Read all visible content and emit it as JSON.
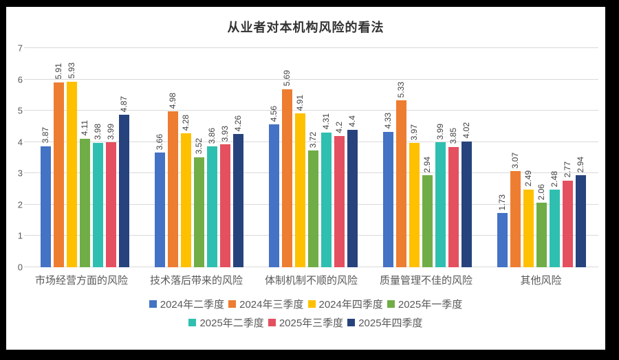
{
  "chart_data": {
    "type": "bar",
    "title": "从业者对本机构风险的看法",
    "xlabel": "",
    "ylabel": "",
    "ylim": [
      0,
      7
    ],
    "y_ticks": [
      0,
      1,
      2,
      3,
      4,
      5,
      6,
      7
    ],
    "grid": true,
    "legend_position": "bottom",
    "legend_row_sizes": [
      4,
      3
    ],
    "categories": [
      "市场经营方面的风险",
      "技术落后带来的风险",
      "体制机制不顺的风险",
      "质量管理不佳的风险",
      "其他风险"
    ],
    "series": [
      {
        "name": "2024年二季度",
        "color": "#4472C4",
        "values": [
          3.87,
          3.66,
          4.56,
          4.33,
          1.73
        ]
      },
      {
        "name": "2024年三季度",
        "color": "#ED7D31",
        "values": [
          5.91,
          4.98,
          5.69,
          5.33,
          3.07
        ]
      },
      {
        "name": "2024年四季度",
        "color": "#FFC000",
        "values": [
          5.93,
          4.28,
          4.91,
          3.97,
          2.49
        ]
      },
      {
        "name": "2025年一季度",
        "color": "#70AD47",
        "values": [
          4.11,
          3.52,
          3.72,
          2.94,
          2.06
        ]
      },
      {
        "name": "2025年二季度",
        "color": "#2FBFB0",
        "values": [
          3.98,
          3.86,
          4.31,
          3.99,
          2.48
        ]
      },
      {
        "name": "2025年三季度",
        "color": "#E4505F",
        "values": [
          3.99,
          3.93,
          4.2,
          3.85,
          2.77
        ]
      },
      {
        "name": "2025年四季度",
        "color": "#27437D",
        "values": [
          4.87,
          4.26,
          4.4,
          4.02,
          2.94
        ]
      }
    ],
    "colors": {
      "gridline": "#D9D9D9",
      "axis_text": "#595959",
      "data_label": "#404040",
      "frame": "#000000",
      "background": "#FFFFFF"
    }
  }
}
